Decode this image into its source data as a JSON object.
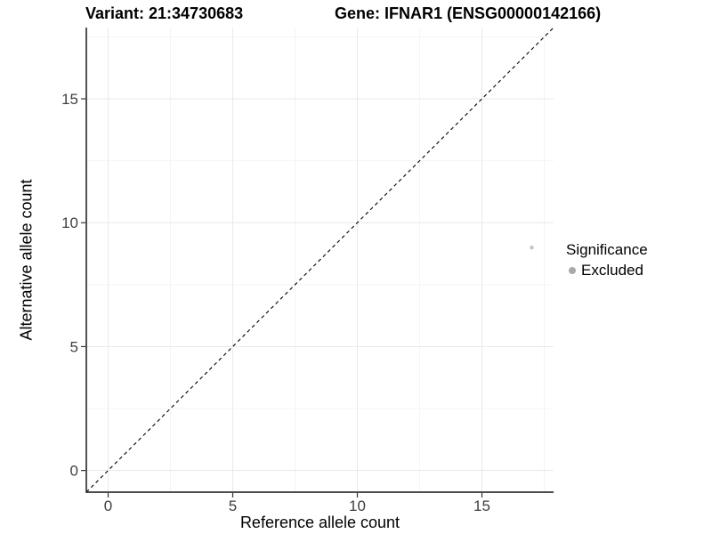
{
  "titles": {
    "variant": "Variant: 21:34730683",
    "gene": "Gene: IFNAR1 (ENSG00000142166)"
  },
  "chart_data": {
    "type": "scatter",
    "title": "Variant: 21:34730683 | Gene: IFNAR1 (ENSG00000142166)",
    "xlabel": "Reference allele count",
    "ylabel": "Alternative allele count",
    "xlim": [
      -0.875,
      17.875
    ],
    "ylim": [
      -0.875,
      17.875
    ],
    "x_ticks": [
      0,
      5,
      10,
      15
    ],
    "y_ticks": [
      0,
      5,
      10,
      15
    ],
    "x_minor_gridlines": [
      2.5,
      7.5,
      12.5,
      17.5
    ],
    "y_minor_gridlines": [
      2.5,
      7.5,
      12.5,
      17.5
    ],
    "grid": true,
    "points": [
      {
        "x": 17,
        "y": 9,
        "series": "Excluded",
        "color": "#c7c7c7",
        "radius": 2.3
      }
    ],
    "reference_line": {
      "type": "identity",
      "slope": 1,
      "intercept": 0,
      "style": "dashed",
      "color": "#000000"
    },
    "legend": {
      "position": "right",
      "title": "Significance",
      "entries": [
        {
          "label": "Excluded",
          "color": "#a9a9a9"
        }
      ]
    },
    "colors": {
      "background": "#ffffff",
      "gridline_major": "#e9e9e9",
      "gridline_minor": "#f4f4f4",
      "axis_line": "#333333",
      "tick_mark": "#333333",
      "tick_label": "#404040"
    }
  }
}
